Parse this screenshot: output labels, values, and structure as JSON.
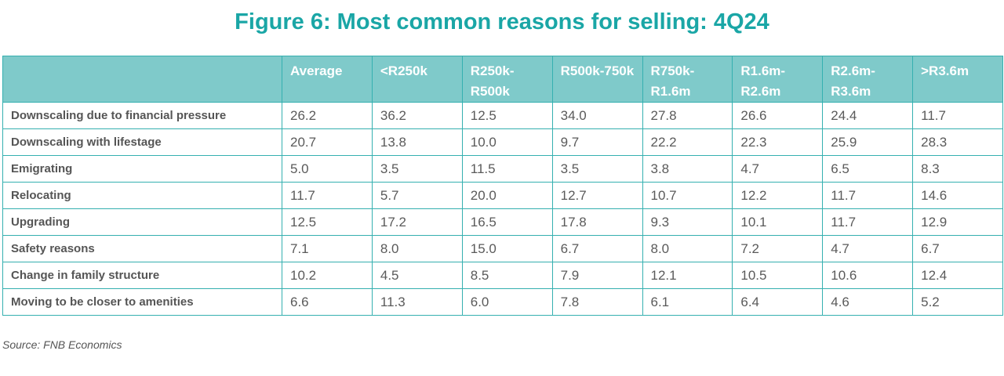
{
  "title": "Figure 6: Most common reasons for selling: 4Q24",
  "source": "Source: FNB Economics",
  "colors": {
    "accent": "#1aa6a6",
    "header_bg": "#7fcaca",
    "border": "#35b0b0"
  },
  "chart_data": {
    "type": "table",
    "title": "Figure 6: Most common reasons for selling: 4Q24",
    "columns": [
      "Average",
      "<R250k",
      "R250k-R500k",
      "R500k-750k",
      "R750k-R1.6m",
      "R1.6m-R2.6m",
      "R2.6m-R3.6m",
      ">R3.6m"
    ],
    "rows": [
      {
        "label": "Downscaling due to financial pressure",
        "values": [
          "26.2",
          "36.2",
          "12.5",
          "34.0",
          "27.8",
          "26.6",
          "24.4",
          "11.7"
        ]
      },
      {
        "label": "Downscaling with lifestage",
        "values": [
          "20.7",
          "13.8",
          "10.0",
          "9.7",
          "22.2",
          "22.3",
          "25.9",
          "28.3"
        ]
      },
      {
        "label": "Emigrating",
        "values": [
          "5.0",
          "3.5",
          "11.5",
          "3.5",
          "3.8",
          "4.7",
          "6.5",
          "8.3"
        ]
      },
      {
        "label": "Relocating",
        "values": [
          "11.7",
          "5.7",
          "20.0",
          "12.7",
          "10.7",
          "12.2",
          "11.7",
          "14.6"
        ]
      },
      {
        "label": "Upgrading",
        "values": [
          "12.5",
          "17.2",
          "16.5",
          "17.8",
          "9.3",
          "10.1",
          "11.7",
          "12.9"
        ]
      },
      {
        "label": "Safety reasons",
        "values": [
          "7.1",
          "8.0",
          "15.0",
          "6.7",
          "8.0",
          "7.2",
          "4.7",
          "6.7"
        ]
      },
      {
        "label": "Change in family structure",
        "values": [
          "10.2",
          "4.5",
          "8.5",
          "7.9",
          "12.1",
          "10.5",
          "10.6",
          "12.4"
        ]
      },
      {
        "label": "Moving to be closer to amenities",
        "values": [
          "6.6",
          "11.3",
          "6.0",
          "7.8",
          "6.1",
          "6.4",
          "4.6",
          "5.2"
        ]
      }
    ]
  }
}
